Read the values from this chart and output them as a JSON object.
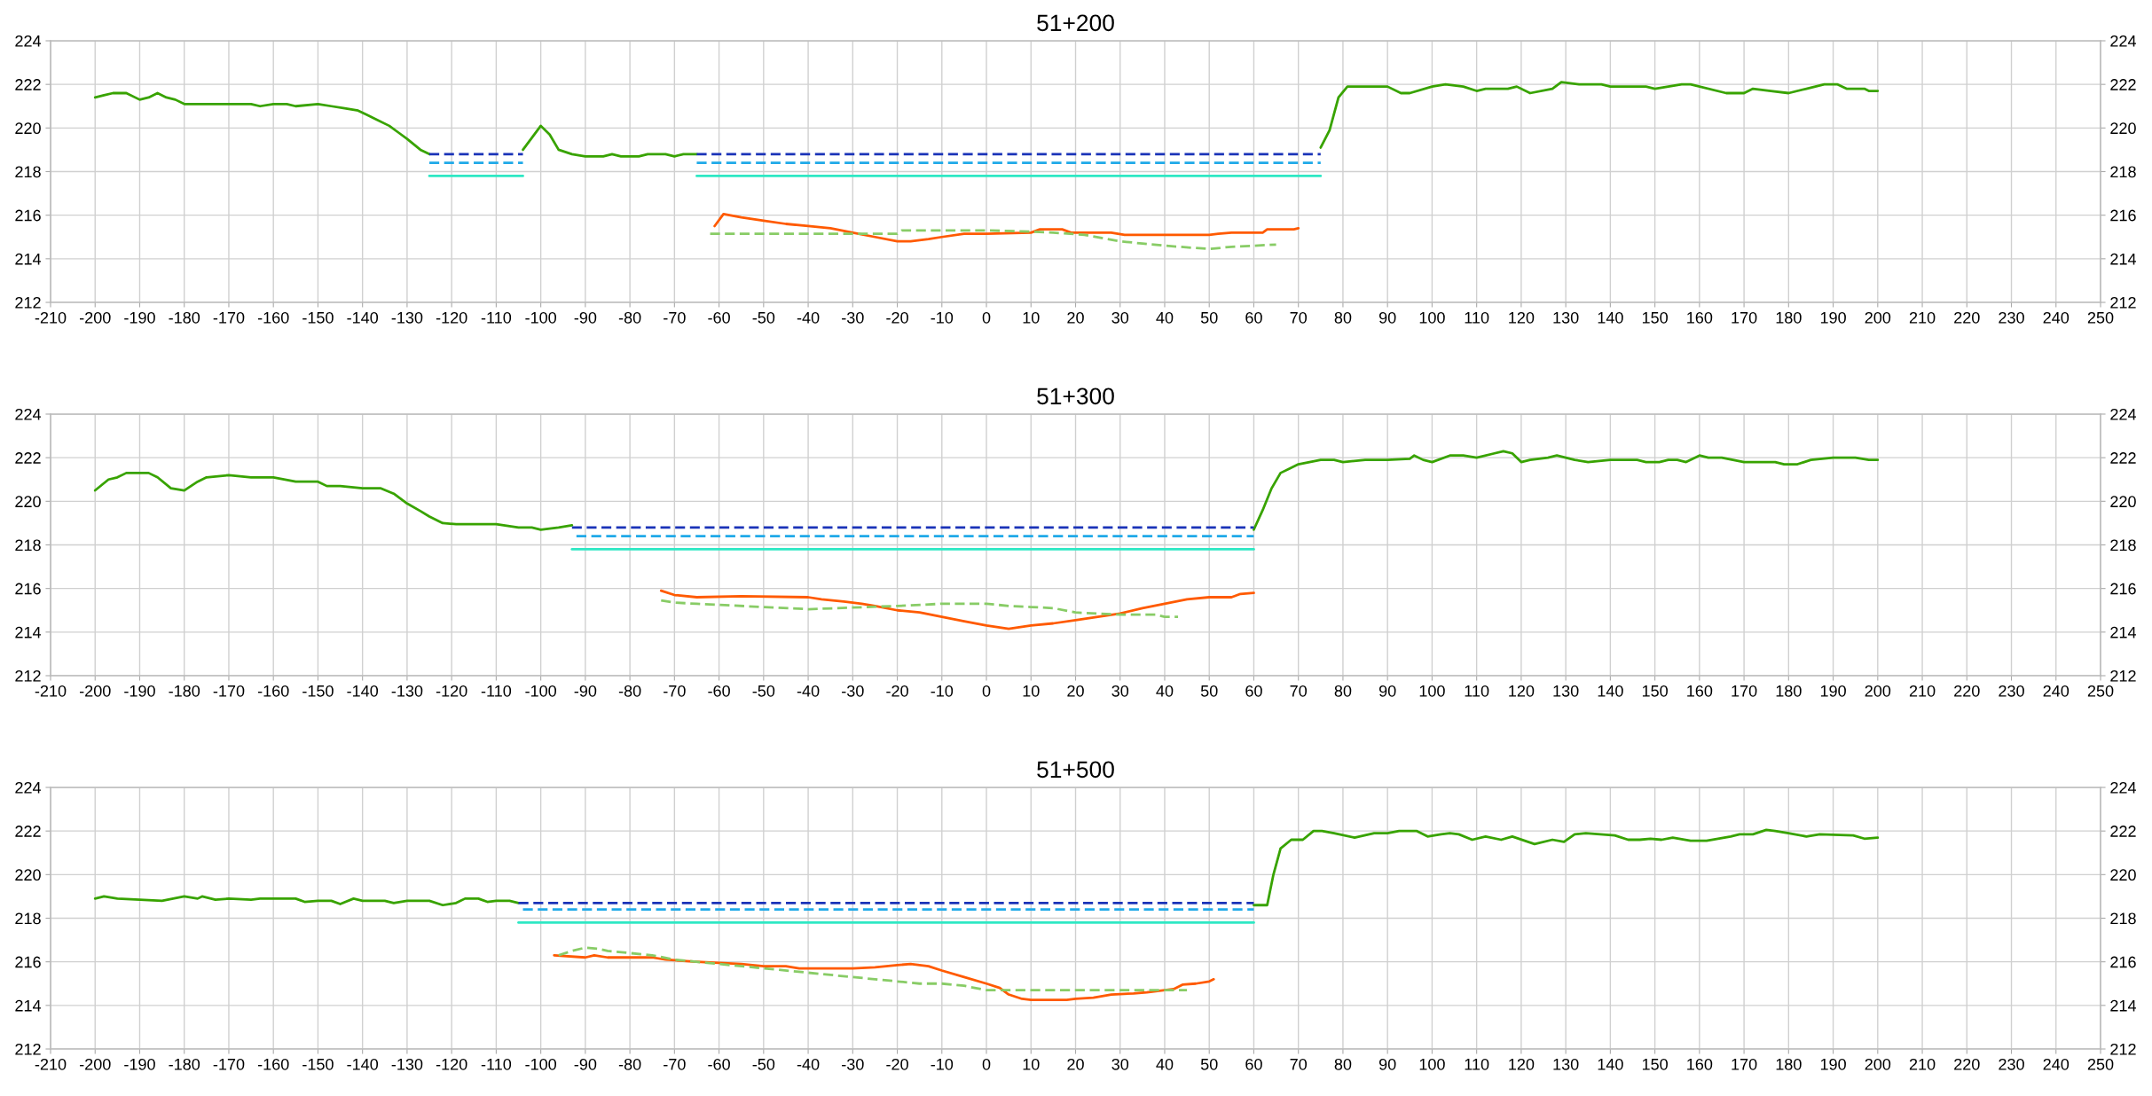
{
  "chart_data": [
    {
      "type": "line",
      "title": "51+200",
      "xlim": [
        -210,
        250
      ],
      "xticks": [
        -210,
        -200,
        -190,
        -180,
        -170,
        -160,
        -150,
        -140,
        -130,
        -120,
        -110,
        -100,
        -90,
        -80,
        -70,
        -60,
        -50,
        -40,
        -30,
        -20,
        -10,
        0,
        10,
        20,
        30,
        40,
        50,
        60,
        70,
        80,
        90,
        100,
        110,
        120,
        130,
        140,
        150,
        160,
        170,
        180,
        190,
        200,
        210,
        220,
        230,
        240,
        250
      ],
      "ylim": [
        212,
        224
      ],
      "yticks": [
        212,
        214,
        216,
        218,
        220,
        222,
        224
      ],
      "y2lim": [
        212,
        224
      ],
      "y2ticks": [
        212,
        214,
        216,
        218,
        220,
        222,
        224
      ],
      "grid": true,
      "series": [
        {
          "color": "#38a300",
          "line_style": "solid",
          "x": [
            -200,
            -198,
            -196,
            -193,
            -190,
            -188,
            -186,
            -184,
            -182,
            -180,
            -177,
            -165,
            -163,
            -160,
            -157,
            -155,
            -150,
            -147,
            -144,
            -141,
            -139,
            -137,
            -134,
            -132,
            -130,
            -127,
            -125,
            -115,
            -104,
            -100,
            -98,
            -96,
            -93,
            -90,
            -86,
            -84,
            -82,
            -78,
            -76,
            -72,
            -70,
            -68,
            -65,
            70,
            75,
            77,
            79,
            81,
            83,
            85,
            90,
            93,
            95,
            100,
            103,
            107,
            110,
            112,
            117,
            119,
            122,
            127,
            129,
            133,
            138,
            140,
            148,
            150,
            156,
            158,
            166,
            170,
            172,
            176,
            180,
            184,
            188,
            191,
            193,
            197,
            198,
            200
          ],
          "values": [
            221.4,
            221.5,
            221.6,
            221.6,
            221.3,
            221.4,
            221.6,
            221.4,
            221.3,
            221.1,
            221.1,
            221.1,
            221.0,
            221.1,
            221.1,
            221.0,
            221.1,
            221.0,
            220.9,
            220.8,
            220.6,
            220.4,
            220.1,
            219.8,
            219.5,
            219.0,
            218.8,
            null,
            219.0,
            220.1,
            219.7,
            219.0,
            218.8,
            218.7,
            218.7,
            218.8,
            218.7,
            218.7,
            218.8,
            218.8,
            218.7,
            218.8,
            218.8,
            null,
            219.1,
            219.9,
            221.4,
            221.9,
            221.9,
            221.9,
            221.9,
            221.6,
            221.6,
            221.9,
            222.0,
            221.9,
            221.7,
            221.8,
            221.8,
            221.9,
            221.6,
            221.8,
            222.1,
            222.0,
            222.0,
            221.9,
            221.9,
            221.8,
            222.0,
            222.0,
            221.6,
            221.6,
            221.8,
            221.7,
            221.6,
            221.8,
            222.0,
            222.0,
            221.8,
            221.8,
            221.7,
            221.7
          ]
        },
        {
          "color": "#1a33b8",
          "line_style": "dashed",
          "x": [
            -125,
            -104,
            -85,
            -65,
            75
          ],
          "values": [
            218.8,
            218.8,
            null,
            218.8,
            218.8
          ]
        },
        {
          "color": "#1fa9e8",
          "line_style": "dashed",
          "x": [
            -125,
            -104,
            -85,
            -65,
            75
          ],
          "values": [
            218.4,
            218.4,
            null,
            218.4,
            218.4
          ]
        },
        {
          "color": "#2ee8c4",
          "line_style": "solid",
          "x": [
            -125,
            -104,
            -85,
            -65,
            75
          ],
          "values": [
            217.8,
            217.8,
            null,
            217.8,
            217.8
          ]
        },
        {
          "color": "#ff5a00",
          "line_style": "solid",
          "x": [
            -61,
            -59,
            -55,
            -50,
            -45,
            -40,
            -35,
            -30,
            -25,
            -20,
            -17,
            -13,
            -10,
            -5,
            0,
            10,
            12,
            17,
            19,
            28,
            31,
            50,
            52,
            55,
            62,
            63,
            69,
            70
          ],
          "values": [
            215.5,
            216.05,
            215.9,
            215.75,
            215.6,
            215.5,
            215.4,
            215.2,
            215.0,
            214.8,
            214.8,
            214.9,
            215.0,
            215.15,
            215.15,
            215.2,
            215.35,
            215.35,
            215.2,
            215.2,
            215.1,
            215.1,
            215.15,
            215.2,
            215.2,
            215.35,
            215.35,
            215.4
          ]
        },
        {
          "color": "#88cc66",
          "line_style": "dashed",
          "x": [
            -62,
            -20,
            -19,
            0,
            10,
            15,
            22,
            30,
            35,
            40,
            50,
            55,
            65
          ],
          "values": [
            215.15,
            215.15,
            215.3,
            215.3,
            215.25,
            215.2,
            215.1,
            214.8,
            214.7,
            214.6,
            214.45,
            214.55,
            214.65
          ]
        }
      ]
    },
    {
      "type": "line",
      "title": "51+300",
      "xlim": [
        -210,
        250
      ],
      "xticks": [
        -210,
        -200,
        -190,
        -180,
        -170,
        -160,
        -150,
        -140,
        -130,
        -120,
        -110,
        -100,
        -90,
        -80,
        -70,
        -60,
        -50,
        -40,
        -30,
        -20,
        -10,
        0,
        10,
        20,
        30,
        40,
        50,
        60,
        70,
        80,
        90,
        100,
        110,
        120,
        130,
        140,
        150,
        160,
        170,
        180,
        190,
        200,
        210,
        220,
        230,
        240,
        250
      ],
      "ylim": [
        212,
        224
      ],
      "yticks": [
        212,
        214,
        216,
        218,
        220,
        222,
        224
      ],
      "y2lim": [
        212,
        224
      ],
      "y2ticks": [
        212,
        214,
        216,
        218,
        220,
        222,
        224
      ],
      "grid": true,
      "series": [
        {
          "color": "#38a300",
          "line_style": "solid",
          "x": [
            -200,
            -197,
            -195,
            -193,
            -188,
            -186,
            -183,
            -180,
            -177,
            -175,
            -170,
            -165,
            -160,
            -155,
            -150,
            -148,
            -145,
            -140,
            -136,
            -133,
            -130,
            -127,
            -125,
            -122,
            -119,
            -110,
            -105,
            -102,
            -100,
            -96,
            -93,
            -80,
            60,
            62,
            64,
            66,
            68,
            70,
            75,
            78,
            80,
            85,
            90,
            95,
            96,
            98,
            100,
            104,
            107,
            110,
            114,
            116,
            118,
            120,
            122,
            126,
            128,
            132,
            135,
            140,
            146,
            148,
            151,
            153,
            155,
            157,
            160,
            162,
            165,
            170,
            177,
            179,
            182,
            185,
            190,
            195,
            198,
            200
          ],
          "values": [
            220.5,
            221.0,
            221.1,
            221.3,
            221.3,
            221.1,
            220.6,
            220.5,
            220.9,
            221.1,
            221.2,
            221.1,
            221.1,
            220.9,
            220.9,
            220.7,
            220.7,
            220.6,
            220.6,
            220.35,
            219.9,
            219.55,
            219.3,
            219.0,
            218.95,
            218.95,
            218.8,
            218.8,
            218.7,
            218.8,
            218.9,
            null,
            218.7,
            219.6,
            220.6,
            221.3,
            221.5,
            221.7,
            221.9,
            221.9,
            221.8,
            221.9,
            221.9,
            221.95,
            222.1,
            221.9,
            221.8,
            222.1,
            222.1,
            222.0,
            222.2,
            222.3,
            222.2,
            221.8,
            221.9,
            222.0,
            222.1,
            221.9,
            221.8,
            221.9,
            221.9,
            221.8,
            221.8,
            221.9,
            221.9,
            221.8,
            222.1,
            222.0,
            222.0,
            221.8,
            221.8,
            221.7,
            221.7,
            221.9,
            222.0,
            222.0,
            221.9,
            221.9
          ]
        },
        {
          "color": "#1a33b8",
          "line_style": "dashed",
          "x": [
            -93,
            60
          ],
          "values": [
            218.8,
            218.8
          ]
        },
        {
          "color": "#1fa9e8",
          "line_style": "dashed",
          "x": [
            -92,
            60
          ],
          "values": [
            218.4,
            218.4
          ]
        },
        {
          "color": "#2ee8c4",
          "line_style": "solid",
          "x": [
            -93,
            60
          ],
          "values": [
            217.8,
            217.8
          ]
        },
        {
          "color": "#ff5a00",
          "line_style": "solid",
          "x": [
            -73,
            -70,
            -65,
            -55,
            -40,
            -37,
            -32,
            -28,
            -25,
            -20,
            -15,
            -10,
            -5,
            0,
            5,
            10,
            15,
            20,
            25,
            30,
            35,
            40,
            45,
            50,
            55,
            57,
            60
          ],
          "values": [
            215.9,
            215.7,
            215.6,
            215.65,
            215.6,
            215.5,
            215.4,
            215.3,
            215.2,
            215.0,
            214.9,
            214.7,
            214.5,
            214.3,
            214.15,
            214.3,
            214.4,
            214.55,
            214.7,
            214.85,
            215.1,
            215.3,
            215.5,
            215.6,
            215.6,
            215.75,
            215.8
          ]
        },
        {
          "color": "#88cc66",
          "line_style": "dashed",
          "x": [
            -73,
            -70,
            -65,
            -50,
            -40,
            -20,
            -10,
            0,
            5,
            10,
            15,
            20,
            30,
            38,
            40,
            43
          ],
          "values": [
            215.45,
            215.35,
            215.3,
            215.15,
            215.05,
            215.2,
            215.3,
            215.3,
            215.2,
            215.15,
            215.1,
            214.9,
            214.8,
            214.8,
            214.7,
            214.7
          ]
        }
      ]
    },
    {
      "type": "line",
      "title": "51+500",
      "xlim": [
        -210,
        250
      ],
      "xticks": [
        -210,
        -200,
        -190,
        -180,
        -170,
        -160,
        -150,
        -140,
        -130,
        -120,
        -110,
        -100,
        -90,
        -80,
        -70,
        -60,
        -50,
        -40,
        -30,
        -20,
        -10,
        0,
        10,
        20,
        30,
        40,
        50,
        60,
        70,
        80,
        90,
        100,
        110,
        120,
        130,
        140,
        150,
        160,
        170,
        180,
        190,
        200,
        210,
        220,
        230,
        240,
        250
      ],
      "ylim": [
        212,
        224
      ],
      "yticks": [
        212,
        214,
        216,
        218,
        220,
        222,
        224
      ],
      "y2lim": [
        212,
        224
      ],
      "y2ticks": [
        212,
        214,
        216,
        218,
        220,
        222,
        224
      ],
      "grid": true,
      "series": [
        {
          "color": "#38a300",
          "line_style": "solid",
          "x": [
            -200,
            -198,
            -195,
            -190,
            -185,
            -180,
            -177,
            -176,
            -173,
            -170,
            -165,
            -163,
            -155,
            -153,
            -150,
            -147,
            -145,
            -142,
            -140,
            -135,
            -133,
            -130,
            -125,
            -122,
            -119,
            -117,
            -114,
            -112,
            -110,
            -107,
            -105,
            0,
            60,
            63,
            64.4,
            66,
            68.4,
            71,
            73.4,
            75.3,
            78,
            82.6,
            87,
            90,
            92.6,
            96.6,
            99,
            102,
            104,
            106,
            109,
            112,
            115.5,
            118,
            123,
            127,
            129.6,
            132,
            134.5,
            141,
            144,
            146.6,
            149,
            151.5,
            154,
            158,
            161.6,
            167,
            169,
            172,
            175,
            177,
            180,
            184,
            187,
            194.5,
            197,
            200
          ],
          "values": [
            218.9,
            219.0,
            218.9,
            218.85,
            218.8,
            219.0,
            218.9,
            219.0,
            218.85,
            218.9,
            218.85,
            218.9,
            218.9,
            218.75,
            218.8,
            218.8,
            218.65,
            218.9,
            218.8,
            218.8,
            218.7,
            218.8,
            218.8,
            218.6,
            218.7,
            218.9,
            218.9,
            218.75,
            218.8,
            218.8,
            218.7,
            null,
            218.6,
            218.6,
            220.0,
            221.2,
            221.6,
            221.6,
            222.0,
            222.0,
            221.9,
            221.7,
            221.9,
            221.9,
            222.0,
            222.0,
            221.75,
            221.85,
            221.9,
            221.85,
            221.6,
            221.75,
            221.6,
            221.75,
            221.4,
            221.6,
            221.5,
            221.85,
            221.9,
            221.8,
            221.6,
            221.6,
            221.65,
            221.6,
            221.7,
            221.55,
            221.55,
            221.75,
            221.85,
            221.85,
            222.05,
            222.0,
            221.9,
            221.75,
            221.85,
            221.8,
            221.65,
            221.7
          ]
        },
        {
          "color": "#1a33b8",
          "line_style": "dashed",
          "x": [
            -105,
            60
          ],
          "values": [
            218.7,
            218.7
          ]
        },
        {
          "color": "#1fa9e8",
          "line_style": "dashed",
          "x": [
            -104,
            60
          ],
          "values": [
            218.4,
            218.4
          ]
        },
        {
          "color": "#2ee8c4",
          "line_style": "solid",
          "x": [
            -105,
            60
          ],
          "values": [
            217.8,
            217.8
          ]
        },
        {
          "color": "#ff5a00",
          "line_style": "solid",
          "x": [
            -97,
            -90,
            -88,
            -85,
            -75,
            -72,
            -65,
            -60,
            -55,
            -50,
            -45,
            -42,
            -30,
            -25,
            -20,
            -17,
            -13,
            -10,
            -5,
            0,
            3,
            5,
            8,
            10,
            18,
            20,
            24,
            28,
            33,
            36,
            40,
            42,
            44,
            47,
            50,
            51
          ],
          "values": [
            216.3,
            216.2,
            216.3,
            216.2,
            216.2,
            216.1,
            216.0,
            215.95,
            215.9,
            215.8,
            215.8,
            215.7,
            215.7,
            215.75,
            215.85,
            215.9,
            215.8,
            215.6,
            215.3,
            215.0,
            214.8,
            214.5,
            214.3,
            214.25,
            214.25,
            214.3,
            214.35,
            214.5,
            214.55,
            214.6,
            214.7,
            214.75,
            214.95,
            215.0,
            215.1,
            215.2
          ]
        },
        {
          "color": "#88cc66",
          "line_style": "dashed",
          "x": [
            -96,
            -93,
            -90,
            -87,
            -85,
            -75,
            -70,
            -60,
            -50,
            -40,
            -30,
            -20,
            -15,
            -10,
            -5,
            0,
            45
          ],
          "values": [
            216.3,
            216.5,
            216.65,
            216.6,
            216.5,
            216.3,
            216.1,
            215.9,
            215.7,
            215.5,
            215.3,
            215.1,
            215.0,
            215.0,
            214.9,
            214.7,
            214.7
          ]
        }
      ]
    }
  ]
}
